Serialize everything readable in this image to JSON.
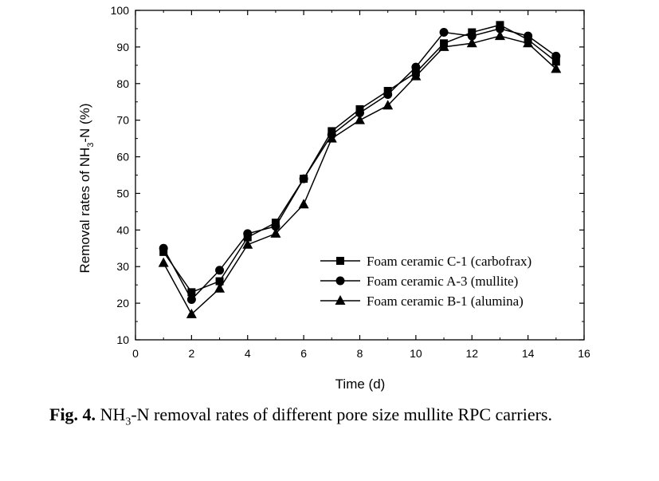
{
  "chart_data": {
    "type": "line",
    "xlabel": "Time (d)",
    "ylabel_parts": [
      "Removal rates of NH",
      "3",
      "-N (%)"
    ],
    "xlim": [
      0,
      16
    ],
    "ylim": [
      10,
      100
    ],
    "x_ticks": [
      "0",
      "2",
      "4",
      "6",
      "8",
      "10",
      "12",
      "14",
      "16"
    ],
    "y_ticks": [
      "10",
      "20",
      "30",
      "40",
      "50",
      "60",
      "70",
      "80",
      "90",
      "100"
    ],
    "grid": false,
    "legend_position": "lower-right",
    "series": [
      {
        "name": "Foam ceramic C-1 (carbofrax)",
        "marker": "square",
        "x": [
          1,
          2,
          3,
          4,
          5,
          6,
          7,
          8,
          9,
          10,
          11,
          12,
          13,
          14,
          15
        ],
        "y": [
          34,
          23,
          26,
          38,
          42,
          54,
          67,
          73,
          78,
          83,
          91,
          94,
          96,
          92,
          86
        ]
      },
      {
        "name": "Foam ceramic A-3 (mullite)",
        "marker": "circle",
        "x": [
          1,
          2,
          3,
          4,
          5,
          6,
          7,
          8,
          9,
          10,
          11,
          12,
          13,
          14,
          15
        ],
        "y": [
          35,
          21,
          29,
          39,
          41,
          54,
          66,
          72,
          77,
          84.5,
          94,
          93,
          95,
          93,
          87.5
        ]
      },
      {
        "name": "Foam ceramic B-1 (alumina)",
        "marker": "triangle",
        "x": [
          1,
          2,
          3,
          4,
          5,
          6,
          7,
          8,
          9,
          10,
          11,
          12,
          13,
          14,
          15
        ],
        "y": [
          31,
          17,
          24,
          36,
          39,
          47,
          65,
          70,
          74,
          82,
          90,
          91,
          93,
          91,
          84
        ]
      }
    ]
  },
  "caption": {
    "label": "Fig. 4.",
    "text_parts": [
      " NH",
      "3",
      "-N removal rates of different pore size mullite RPC carriers."
    ]
  }
}
